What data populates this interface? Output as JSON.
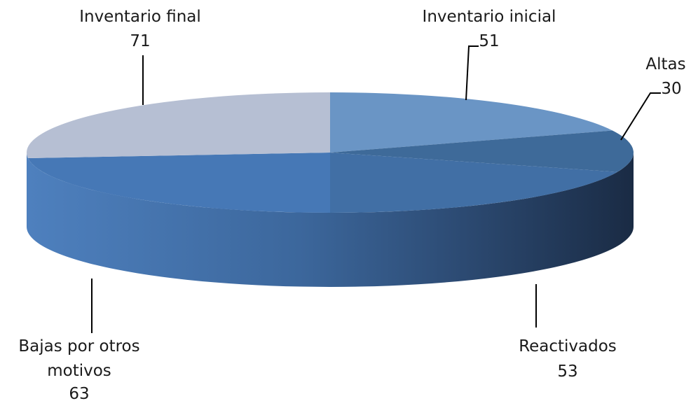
{
  "chart_data": {
    "type": "pie",
    "title": "",
    "slices": [
      {
        "name": "Inventario inicial",
        "label_lines": [
          "Inventario inicial"
        ],
        "value": 51,
        "color": "#6A95C5"
      },
      {
        "name": "Altas",
        "label_lines": [
          "Altas"
        ],
        "value": 30,
        "color": "#3E6A99"
      },
      {
        "name": "Reactivados",
        "label_lines": [
          "Reactivados"
        ],
        "value": 53,
        "color": "#416FA5"
      },
      {
        "name": "Bajas por otros motivos",
        "label_lines": [
          "Bajas por otros",
          "motivos"
        ],
        "value": 63,
        "color": "#4678B6"
      },
      {
        "name": "Inventario final",
        "label_lines": [
          "Inventario final"
        ],
        "value": 71,
        "color": "#B6BFD3"
      }
    ],
    "three_d": true,
    "legend": "none"
  }
}
